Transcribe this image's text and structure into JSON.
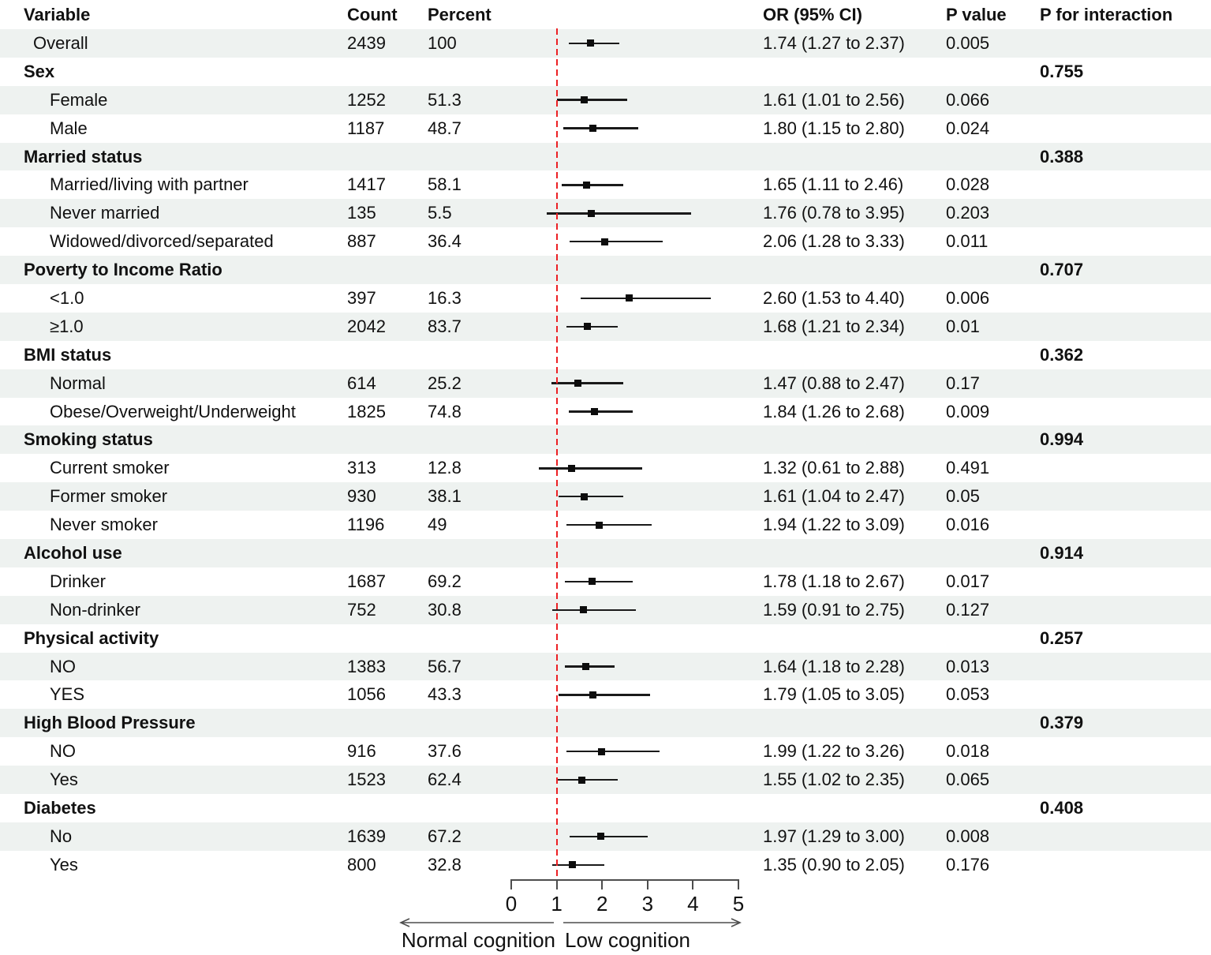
{
  "header": {
    "columns": [
      "Variable",
      "Count",
      "Percent",
      "OR (95% CI)",
      "P value",
      "P for interaction"
    ]
  },
  "chart_data": {
    "type": "forest",
    "or_axis": {
      "range": [
        0,
        5
      ],
      "ticks": [
        "0",
        "1",
        "2",
        "3",
        "4",
        "5"
      ],
      "reference_line": 1
    },
    "arrow_labels": {
      "left": "Normal cognition",
      "right": "Low cognition"
    },
    "colors": {
      "reference_line": "#ec2024",
      "stripe": "#eef2f0",
      "marker": "#0d0d0d",
      "axis": "#4d4d4d"
    },
    "rows": [
      {
        "type": "overall",
        "label": "Overall",
        "count": "2439",
        "percent": "100",
        "or": 1.74,
        "lo": 1.27,
        "hi": 2.37,
        "or_ci": "1.74 (1.27 to 2.37)",
        "p": "0.005",
        "p_interaction": ""
      },
      {
        "type": "group",
        "label": "Sex",
        "count": "",
        "percent": "",
        "or_ci": "",
        "p": "",
        "p_interaction": "0.755"
      },
      {
        "type": "item",
        "label": "Female",
        "count": "1252",
        "percent": "51.3",
        "or": 1.61,
        "lo": 1.01,
        "hi": 2.56,
        "or_ci": "1.61 (1.01 to 2.56)",
        "p": "0.066",
        "p_interaction": ""
      },
      {
        "type": "item",
        "label": "Male",
        "count": "1187",
        "percent": "48.7",
        "or": 1.8,
        "lo": 1.15,
        "hi": 2.8,
        "or_ci": "1.80 (1.15 to 2.80)",
        "p": "0.024",
        "p_interaction": ""
      },
      {
        "type": "group",
        "label": "Married status",
        "count": "",
        "percent": "",
        "or_ci": "",
        "p": "",
        "p_interaction": "0.388"
      },
      {
        "type": "item",
        "label": "Married/living with partner",
        "count": "1417",
        "percent": "58.1",
        "or": 1.65,
        "lo": 1.11,
        "hi": 2.46,
        "or_ci": "1.65 (1.11 to 2.46)",
        "p": "0.028",
        "p_interaction": ""
      },
      {
        "type": "item",
        "label": "Never married",
        "count": "135",
        "percent": "5.5",
        "or": 1.76,
        "lo": 0.78,
        "hi": 3.95,
        "or_ci": "1.76 (0.78 to 3.95)",
        "p": "0.203",
        "p_interaction": ""
      },
      {
        "type": "item",
        "label": "Widowed/divorced/separated",
        "count": "887",
        "percent": "36.4",
        "or": 2.06,
        "lo": 1.28,
        "hi": 3.33,
        "or_ci": "2.06 (1.28 to 3.33)",
        "p": "0.011",
        "p_interaction": ""
      },
      {
        "type": "group",
        "label": "Poverty to Income Ratio",
        "count": "",
        "percent": "",
        "or_ci": "",
        "p": "",
        "p_interaction": "0.707"
      },
      {
        "type": "item",
        "label": "<1.0",
        "count": "397",
        "percent": "16.3",
        "or": 2.6,
        "lo": 1.53,
        "hi": 4.4,
        "or_ci": "2.60 (1.53 to 4.40)",
        "p": "0.006",
        "p_interaction": ""
      },
      {
        "type": "item",
        "label": "≥1.0",
        "count": "2042",
        "percent": "83.7",
        "or": 1.68,
        "lo": 1.21,
        "hi": 2.34,
        "or_ci": "1.68 (1.21 to 2.34)",
        "p": "0.01",
        "p_interaction": ""
      },
      {
        "type": "group",
        "label": "BMI status",
        "count": "",
        "percent": "",
        "or_ci": "",
        "p": "",
        "p_interaction": "0.362"
      },
      {
        "type": "item",
        "label": "Normal",
        "count": "614",
        "percent": "25.2",
        "or": 1.47,
        "lo": 0.88,
        "hi": 2.47,
        "or_ci": "1.47 (0.88 to 2.47)",
        "p": "0.17",
        "p_interaction": ""
      },
      {
        "type": "item",
        "label": "Obese/Overweight/Underweight",
        "count": "1825",
        "percent": "74.8",
        "or": 1.84,
        "lo": 1.26,
        "hi": 2.68,
        "or_ci": "1.84 (1.26 to 2.68)",
        "p": "0.009",
        "p_interaction": ""
      },
      {
        "type": "group",
        "label": "Smoking status",
        "count": "",
        "percent": "",
        "or_ci": "",
        "p": "",
        "p_interaction": "0.994"
      },
      {
        "type": "item",
        "label": "Current smoker",
        "count": "313",
        "percent": "12.8",
        "or": 1.32,
        "lo": 0.61,
        "hi": 2.88,
        "or_ci": "1.32 (0.61 to 2.88)",
        "p": "0.491",
        "p_interaction": ""
      },
      {
        "type": "item",
        "label": "Former smoker",
        "count": "930",
        "percent": "38.1",
        "or": 1.61,
        "lo": 1.04,
        "hi": 2.47,
        "or_ci": "1.61 (1.04 to 2.47)",
        "p": "0.05",
        "p_interaction": ""
      },
      {
        "type": "item",
        "label": "Never smoker",
        "count": "1196",
        "percent": "49",
        "or": 1.94,
        "lo": 1.22,
        "hi": 3.09,
        "or_ci": "1.94 (1.22 to 3.09)",
        "p": "0.016",
        "p_interaction": ""
      },
      {
        "type": "group",
        "label": "Alcohol use",
        "count": "",
        "percent": "",
        "or_ci": "",
        "p": "",
        "p_interaction": "0.914"
      },
      {
        "type": "item",
        "label": "Drinker",
        "count": "1687",
        "percent": "69.2",
        "or": 1.78,
        "lo": 1.18,
        "hi": 2.67,
        "or_ci": "1.78 (1.18 to 2.67)",
        "p": "0.017",
        "p_interaction": ""
      },
      {
        "type": "item",
        "label": "Non-drinker",
        "count": "752",
        "percent": "30.8",
        "or": 1.59,
        "lo": 0.91,
        "hi": 2.75,
        "or_ci": "1.59 (0.91 to 2.75)",
        "p": "0.127",
        "p_interaction": ""
      },
      {
        "type": "group",
        "label": "Physical activity",
        "count": "",
        "percent": "",
        "or_ci": "",
        "p": "",
        "p_interaction": "0.257"
      },
      {
        "type": "item",
        "label": "NO",
        "count": "1383",
        "percent": "56.7",
        "or": 1.64,
        "lo": 1.18,
        "hi": 2.28,
        "or_ci": "1.64 (1.18 to 2.28)",
        "p": "0.013",
        "p_interaction": ""
      },
      {
        "type": "item",
        "label": "YES",
        "count": "1056",
        "percent": "43.3",
        "or": 1.79,
        "lo": 1.05,
        "hi": 3.05,
        "or_ci": "1.79 (1.05 to 3.05)",
        "p": "0.053",
        "p_interaction": ""
      },
      {
        "type": "group",
        "label": "High Blood Pressure",
        "count": "",
        "percent": "",
        "or_ci": "",
        "p": "",
        "p_interaction": "0.379"
      },
      {
        "type": "item",
        "label": "NO",
        "count": "916",
        "percent": "37.6",
        "or": 1.99,
        "lo": 1.22,
        "hi": 3.26,
        "or_ci": "1.99 (1.22 to 3.26)",
        "p": "0.018",
        "p_interaction": ""
      },
      {
        "type": "item",
        "label": "Yes",
        "count": "1523",
        "percent": "62.4",
        "or": 1.55,
        "lo": 1.02,
        "hi": 2.35,
        "or_ci": "1.55 (1.02 to 2.35)",
        "p": "0.065",
        "p_interaction": ""
      },
      {
        "type": "group",
        "label": "Diabetes",
        "count": "",
        "percent": "",
        "or_ci": "",
        "p": "",
        "p_interaction": "0.408"
      },
      {
        "type": "item",
        "label": "No",
        "count": "1639",
        "percent": "67.2",
        "or": 1.97,
        "lo": 1.29,
        "hi": 3.0,
        "or_ci": "1.97 (1.29 to 3.00)",
        "p": "0.008",
        "p_interaction": ""
      },
      {
        "type": "item",
        "label": "Yes",
        "count": "800",
        "percent": "32.8",
        "or": 1.35,
        "lo": 0.9,
        "hi": 2.05,
        "or_ci": "1.35 (0.90 to 2.05)",
        "p": "0.176",
        "p_interaction": ""
      }
    ]
  }
}
